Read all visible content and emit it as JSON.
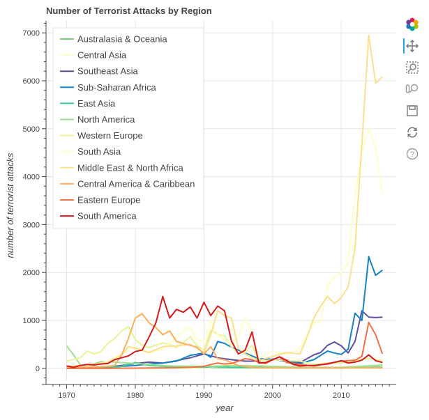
{
  "chart_data": {
    "type": "line",
    "title": "Number of Terrorist Attacks by Region",
    "xlabel": "year",
    "ylabel": "number of terrorist attacks",
    "xlim": [
      1967,
      2018
    ],
    "ylim": [
      -250,
      7250
    ],
    "x_ticks": [
      1970,
      1980,
      1990,
      2000,
      2010
    ],
    "y_ticks": [
      0,
      1000,
      2000,
      3000,
      4000,
      5000,
      6000,
      7000
    ],
    "grid": true,
    "legend_position": "top-left",
    "series": [
      {
        "name": "Australasia & Oceania",
        "color": "#7fcf8a",
        "x": [
          1970,
          1975,
          1980,
          1985,
          1990,
          1995,
          2000,
          2005,
          2010,
          2016
        ],
        "y": [
          1,
          2,
          5,
          10,
          20,
          10,
          10,
          5,
          5,
          30
        ]
      },
      {
        "name": "Central Asia",
        "color": "#ffffbf",
        "x": [
          1970,
          1980,
          1990,
          1992,
          1994,
          1995,
          1997,
          2000,
          2005,
          2010,
          2016
        ],
        "y": [
          0,
          0,
          5,
          40,
          80,
          60,
          30,
          20,
          10,
          10,
          5
        ]
      },
      {
        "name": "Southeast Asia",
        "color": "#5e4fa2",
        "x": [
          1970,
          1972,
          1974,
          1976,
          1978,
          1980,
          1982,
          1984,
          1986,
          1988,
          1990,
          1991,
          1992,
          1994,
          1996,
          1998,
          2000,
          2002,
          2004,
          2006,
          2007,
          2008,
          2009,
          2010,
          2011,
          2012,
          2013,
          2014,
          2015,
          2016
        ],
        "y": [
          5,
          10,
          20,
          30,
          60,
          100,
          130,
          110,
          160,
          220,
          300,
          260,
          220,
          180,
          150,
          150,
          190,
          170,
          120,
          280,
          330,
          480,
          550,
          470,
          320,
          560,
          1200,
          1070,
          1060,
          1070
        ]
      },
      {
        "name": "Sub-Saharan Africa",
        "color": "#1682c3",
        "x": [
          1970,
          1972,
          1974,
          1976,
          1978,
          1980,
          1982,
          1984,
          1986,
          1988,
          1990,
          1991,
          1992,
          1993,
          1994,
          1996,
          1998,
          2000,
          2002,
          2004,
          2006,
          2008,
          2009,
          2010,
          2011,
          2012,
          2013,
          2014,
          2015,
          2016
        ],
        "y": [
          2,
          5,
          15,
          20,
          40,
          60,
          90,
          110,
          150,
          270,
          320,
          230,
          560,
          520,
          440,
          320,
          200,
          190,
          140,
          100,
          180,
          360,
          320,
          290,
          400,
          1150,
          1000,
          2330,
          1940,
          2050
        ]
      },
      {
        "name": "East Asia",
        "color": "#3ccb9b",
        "x": [
          1970,
          1974,
          1978,
          1980,
          1982,
          1986,
          1990,
          1992,
          1994,
          1996,
          1998,
          2000,
          2004,
          2008,
          2012,
          2016
        ],
        "y": [
          2,
          10,
          40,
          120,
          60,
          30,
          20,
          40,
          20,
          30,
          20,
          10,
          10,
          10,
          10,
          10
        ]
      },
      {
        "name": "North America",
        "color": "#9ee28f",
        "x": [
          1970,
          1971,
          1972,
          1973,
          1975,
          1977,
          1980,
          1985,
          1990,
          1995,
          2000,
          2005,
          2010,
          2016
        ],
        "y": [
          470,
          280,
          70,
          50,
          140,
          130,
          100,
          50,
          40,
          60,
          40,
          20,
          20,
          70
        ]
      },
      {
        "name": "Western Europe",
        "color": "#e6f598",
        "x": [
          1970,
          1972,
          1973,
          1974,
          1975,
          1976,
          1977,
          1978,
          1979,
          1980,
          1981,
          1982,
          1983,
          1984,
          1985,
          1986,
          1987,
          1988,
          1989,
          1990,
          1991,
          1992,
          1993,
          1994,
          1995,
          1996,
          1997,
          1998,
          1999,
          2000,
          2002,
          2004,
          2006,
          2008,
          2010,
          2012,
          2014,
          2016
        ],
        "y": [
          150,
          220,
          360,
          300,
          350,
          520,
          620,
          780,
          870,
          600,
          480,
          430,
          480,
          530,
          500,
          430,
          540,
          660,
          470,
          380,
          800,
          700,
          680,
          440,
          320,
          330,
          480,
          160,
          160,
          180,
          160,
          150,
          80,
          110,
          110,
          160,
          210,
          160
        ]
      },
      {
        "name": "South Asia",
        "color": "#fffec6",
        "x": [
          1970,
          1974,
          1976,
          1978,
          1980,
          1982,
          1984,
          1986,
          1987,
          1988,
          1989,
          1990,
          1991,
          1992,
          1993,
          1994,
          1995,
          1996,
          1997,
          1998,
          1999,
          2000,
          2002,
          2004,
          2005,
          2006,
          2007,
          2008,
          2009,
          2010,
          2011,
          2012,
          2013,
          2014,
          2015,
          2016
        ],
        "y": [
          10,
          60,
          150,
          300,
          450,
          310,
          400,
          650,
          780,
          850,
          600,
          550,
          1000,
          700,
          600,
          500,
          620,
          1050,
          750,
          200,
          300,
          350,
          290,
          410,
          700,
          950,
          980,
          1730,
          1900,
          2000,
          2200,
          3600,
          4500,
          5000,
          4600,
          3650
        ]
      },
      {
        "name": "Middle East & North Africa",
        "color": "#fee08b",
        "x": [
          1970,
          1972,
          1974,
          1976,
          1978,
          1979,
          1980,
          1982,
          1984,
          1986,
          1988,
          1990,
          1991,
          1992,
          1993,
          1994,
          1995,
          1996,
          1998,
          2000,
          2002,
          2004,
          2005,
          2006,
          2007,
          2008,
          2009,
          2010,
          2011,
          2012,
          2013,
          2014,
          2015,
          2016
        ],
        "y": [
          40,
          60,
          80,
          120,
          280,
          450,
          420,
          330,
          450,
          470,
          500,
          330,
          700,
          1200,
          1100,
          1050,
          420,
          300,
          160,
          250,
          330,
          300,
          650,
          1050,
          1300,
          1500,
          1350,
          1480,
          1700,
          2500,
          4700,
          6950,
          5950,
          6080
        ]
      },
      {
        "name": "Central America & Caribbean",
        "color": "#fdae61",
        "x": [
          1970,
          1972,
          1974,
          1976,
          1977,
          1978,
          1979,
          1980,
          1981,
          1982,
          1983,
          1984,
          1985,
          1986,
          1987,
          1988,
          1989,
          1990,
          1991,
          1992,
          1993,
          1994,
          1995,
          1996,
          1997,
          1998,
          2000,
          2005,
          2010,
          2016
        ],
        "y": [
          30,
          20,
          30,
          40,
          60,
          280,
          620,
          1050,
          1140,
          950,
          850,
          700,
          780,
          560,
          520,
          480,
          440,
          300,
          450,
          200,
          180,
          120,
          60,
          40,
          20,
          10,
          10,
          10,
          10,
          10
        ]
      },
      {
        "name": "Eastern Europe",
        "color": "#f46d43",
        "x": [
          1970,
          1975,
          1980,
          1985,
          1988,
          1990,
          1991,
          1992,
          1993,
          1994,
          1995,
          1996,
          1997,
          1998,
          1999,
          2000,
          2001,
          2002,
          2004,
          2006,
          2008,
          2010,
          2012,
          2013,
          2014,
          2015,
          2016
        ],
        "y": [
          2,
          2,
          5,
          10,
          20,
          40,
          80,
          110,
          90,
          100,
          150,
          200,
          180,
          120,
          100,
          180,
          240,
          120,
          80,
          50,
          100,
          150,
          170,
          250,
          960,
          700,
          300
        ]
      },
      {
        "name": "South America",
        "color": "#d7191c",
        "x": [
          1970,
          1971,
          1972,
          1973,
          1974,
          1975,
          1976,
          1977,
          1978,
          1979,
          1980,
          1981,
          1982,
          1983,
          1984,
          1985,
          1986,
          1987,
          1988,
          1989,
          1990,
          1991,
          1992,
          1993,
          1994,
          1995,
          1996,
          1997,
          1998,
          1999,
          2000,
          2001,
          2002,
          2003,
          2004,
          2005,
          2006,
          2008,
          2010,
          2011,
          2012,
          2013,
          2014,
          2015,
          2016
        ],
        "y": [
          50,
          20,
          60,
          80,
          70,
          90,
          100,
          180,
          220,
          260,
          350,
          380,
          650,
          950,
          1500,
          1050,
          1230,
          1170,
          1280,
          1050,
          1380,
          1100,
          1300,
          1200,
          570,
          300,
          380,
          760,
          110,
          120,
          180,
          240,
          170,
          80,
          50,
          60,
          60,
          90,
          160,
          110,
          130,
          170,
          280,
          160,
          120
        ]
      }
    ]
  },
  "toolbar": {
    "tools": [
      "bokeh-logo-icon",
      "pan-icon",
      "box-zoom-icon",
      "wheel-zoom-icon",
      "save-icon",
      "reset-icon",
      "help-icon"
    ]
  }
}
